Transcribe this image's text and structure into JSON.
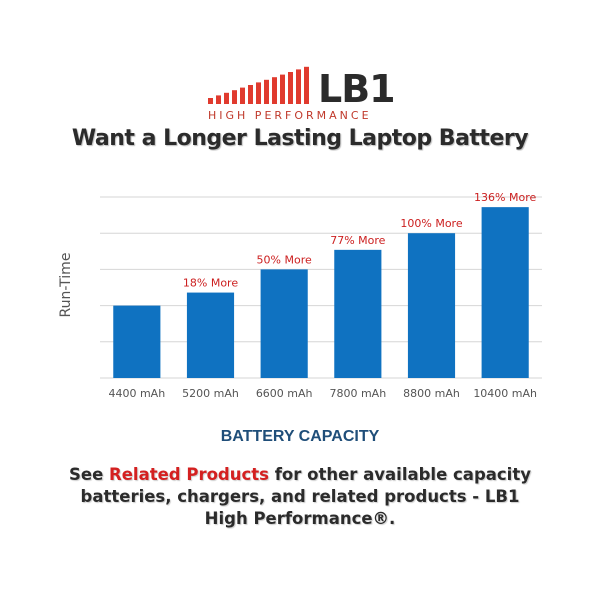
{
  "logo": {
    "brand": "LB1",
    "tagline": "HIGH PERFORMANCE"
  },
  "headline": "Want a Longer Lasting Laptop Battery",
  "chart_data": {
    "type": "bar",
    "categories": [
      "4400 mAh",
      "5200 mAh",
      "6600 mAh",
      "7800 mAh",
      "8800 mAh",
      "10400 mAh"
    ],
    "values": [
      1.0,
      1.18,
      1.5,
      1.77,
      2.0,
      2.36
    ],
    "data_labels": [
      "",
      "18% More",
      "50% More",
      "77% More",
      "100% More",
      "136% More"
    ],
    "ylabel": "Run-Time",
    "xlabel": "BATTERY CAPACITY",
    "ylim": [
      0,
      2.5
    ],
    "grid": true,
    "colors": {
      "bar": "#0f72c1",
      "label": "#cc1f1f",
      "grid": "#d6d6d6",
      "tick": "#555555"
    }
  },
  "footer": {
    "pre": "See ",
    "link": "Related Products",
    "post": " for other available capacity batteries, chargers, and related products - LB1 High Performance®."
  },
  "colors": {
    "brand_red": "#e03a2e",
    "brand_dark": "#2b2b2b",
    "xtitle": "#1f4e79"
  }
}
